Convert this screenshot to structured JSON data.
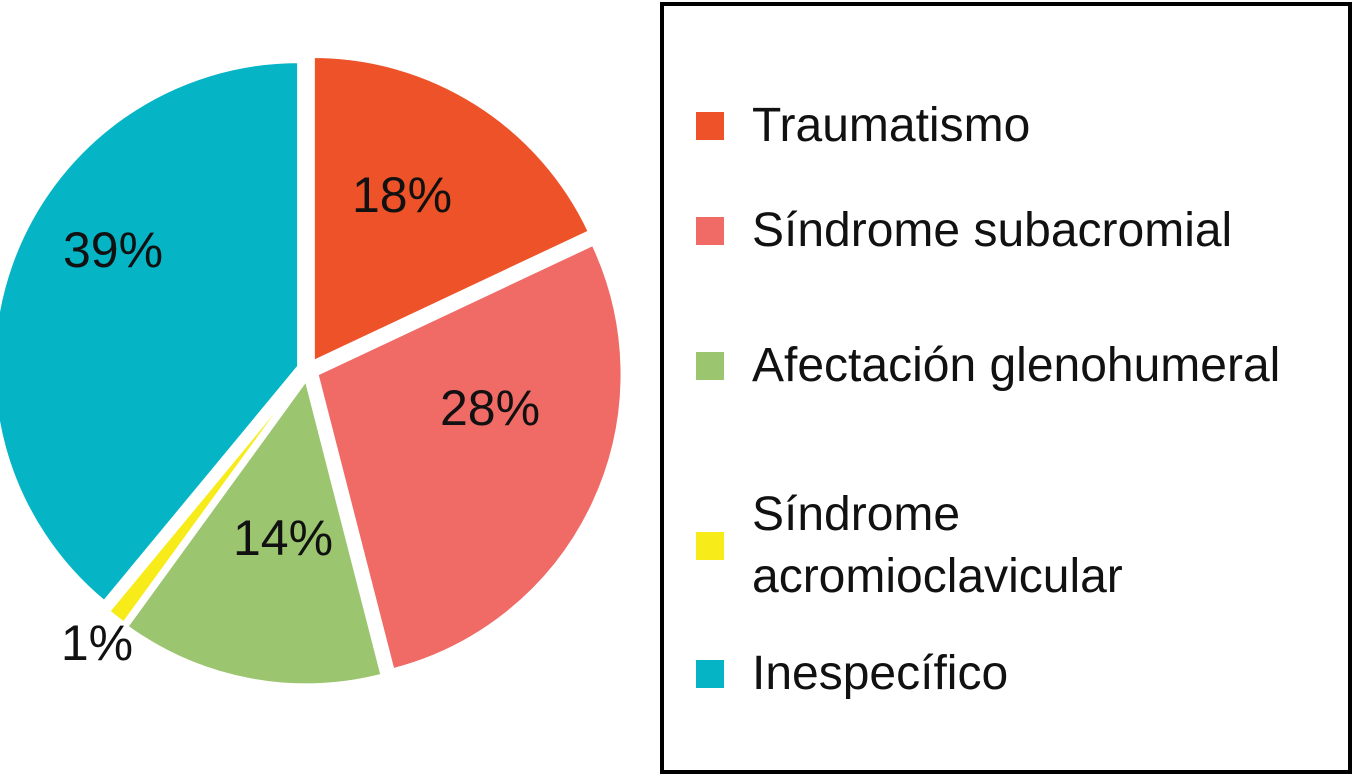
{
  "chart_data": {
    "type": "pie",
    "title": "",
    "slices": [
      {
        "label": "Traumatismo",
        "value": 18,
        "value_label": "18%",
        "color": "#EE5228"
      },
      {
        "label": "Síndrome subacromial",
        "value": 28,
        "value_label": "28%",
        "color": "#F06A66"
      },
      {
        "label": "Afectación glenohumeral",
        "value": 14,
        "value_label": "14%",
        "color": "#9CC570"
      },
      {
        "label": "Síndrome acromioclavicular",
        "value": 1,
        "value_label": "1%",
        "color": "#F7EB1A"
      },
      {
        "label": "Inespecífico",
        "value": 39,
        "value_label": "39%",
        "color": "#05B5C5"
      }
    ],
    "start_angle_deg": 0,
    "direction": "clockwise",
    "exploded": true,
    "legend_position": "right"
  }
}
